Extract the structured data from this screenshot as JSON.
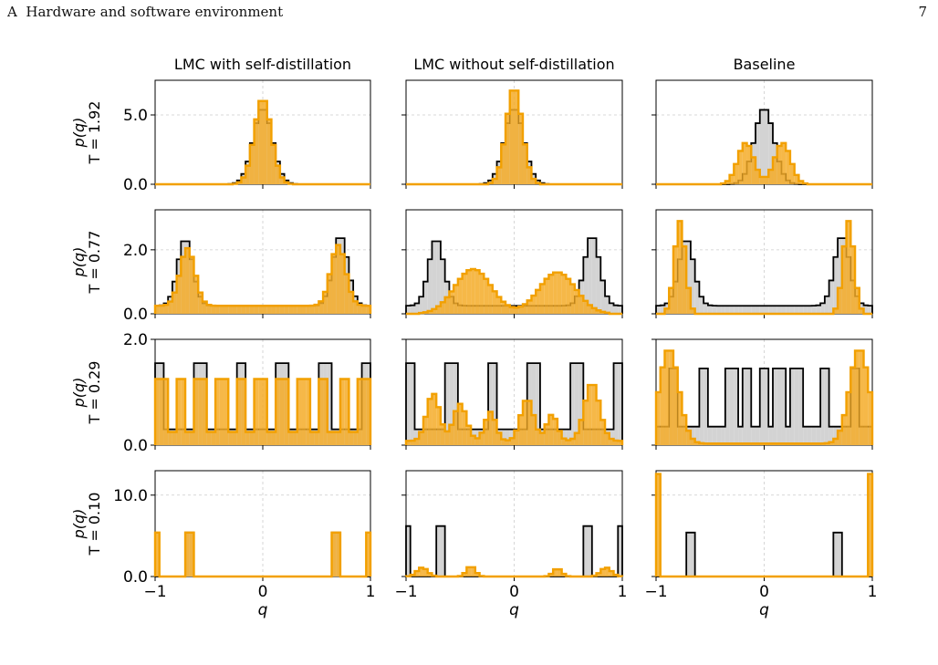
{
  "header": {
    "section": "A",
    "title": "Hardware and software environment",
    "page_number": "7"
  },
  "colors": {
    "reference_fill": "#d3d3d3",
    "reference_edge": "#000000",
    "model_fill": "#f5ac28",
    "model_edge": "#f2a000"
  },
  "chart_data": {
    "type": "histogram-grid",
    "grid": true,
    "xlabel": "q",
    "x_ticks": [
      "−1",
      "0",
      "1"
    ],
    "xlim": [
      -1,
      1
    ],
    "columns": [
      "LMC with self-distillation",
      "LMC without self-distillation",
      "Baseline"
    ],
    "rows": [
      {
        "label_top": "p(q)",
        "label_bottom": "T = 1.92",
        "ylim": [
          0,
          7.5
        ],
        "y_ticks": [
          {
            "value": 0,
            "label": "0.0"
          },
          {
            "value": 5,
            "label": "5.0"
          }
        ]
      },
      {
        "label_top": "p(q)",
        "label_bottom": "T = 0.77",
        "ylim": [
          0,
          3.25
        ],
        "y_ticks": [
          {
            "value": 0,
            "label": "0.0"
          },
          {
            "value": 2,
            "label": "2.0"
          }
        ]
      },
      {
        "label_top": "p(q)",
        "label_bottom": "T = 0.29",
        "ylim": [
          0,
          2.0
        ],
        "y_ticks": [
          {
            "value": 0,
            "label": "0.0"
          },
          {
            "value": 2,
            "label": "2.0"
          }
        ]
      },
      {
        "label_top": "p(q)",
        "label_bottom": "T = 0.10",
        "ylim": [
          0,
          13.0
        ],
        "y_ticks": [
          {
            "value": 0,
            "label": "0.0"
          },
          {
            "value": 10,
            "label": "10.0"
          }
        ]
      }
    ],
    "histograms": {
      "row0": {
        "reference": {
          "type": "gauss",
          "peaks": [
            [
              0,
              5.5,
              0.09
            ]
          ]
        },
        "col0": {
          "type": "gauss",
          "peaks": [
            [
              0,
              6.2,
              0.08
            ]
          ]
        },
        "col1": {
          "type": "gauss",
          "peaks": [
            [
              0,
              7.0,
              0.075
            ]
          ]
        },
        "col2": {
          "type": "gauss",
          "peaks": [
            [
              -0.17,
              3.0,
              0.075
            ],
            [
              0.17,
              3.0,
              0.075
            ]
          ]
        }
      },
      "row1": {
        "reference": {
          "type": "gauss",
          "base": 0.25,
          "peaks": [
            [
              -0.72,
              2.1,
              0.07
            ],
            [
              0.72,
              2.2,
              0.07
            ]
          ]
        },
        "col0": {
          "type": "gauss",
          "base": 0.25,
          "peaks": [
            [
              -0.7,
              1.8,
              0.07
            ],
            [
              0.7,
              1.9,
              0.07
            ]
          ]
        },
        "col1": {
          "type": "gauss",
          "peaks": [
            [
              -0.38,
              1.4,
              0.17
            ],
            [
              0.4,
              1.3,
              0.17
            ]
          ]
        },
        "col2": {
          "type": "gauss",
          "peaks": [
            [
              -0.78,
              2.9,
              0.05
            ],
            [
              0.78,
              2.9,
              0.05
            ]
          ]
        }
      },
      "row2": {
        "reference": {
          "type": "spikes",
          "height": 1.55,
          "base": 0.3,
          "width": 0.06,
          "positions": [
            -0.97,
            -0.58,
            -0.2,
            0.2,
            0.58,
            0.97
          ]
        },
        "col0": {
          "type": "spikes",
          "height": 1.25,
          "base": 0.25,
          "width": 0.06,
          "positions": [
            -0.95,
            -0.76,
            -0.56,
            -0.38,
            -0.2,
            0.0,
            0.2,
            0.38,
            0.56,
            0.76,
            0.95
          ]
        },
        "col1": {
          "type": "gauss",
          "base": 0.08,
          "peaks": [
            [
              -0.75,
              0.9,
              0.06
            ],
            [
              -0.5,
              0.7,
              0.06
            ],
            [
              -0.22,
              0.55,
              0.05
            ],
            [
              0.12,
              0.8,
              0.06
            ],
            [
              0.35,
              0.5,
              0.05
            ],
            [
              0.72,
              1.1,
              0.07
            ]
          ]
        },
        "col2": {
          "type": "gauss",
          "base": 0.03,
          "peaks": [
            [
              -0.88,
              1.8,
              0.09
            ],
            [
              0.88,
              1.8,
              0.09
            ]
          ]
        },
        "col2_reference": {
          "type": "spikes",
          "height": 1.45,
          "base": 0.35,
          "width": 0.05,
          "positions": [
            -0.85,
            -0.55,
            -0.3,
            -0.15,
            0.0,
            0.15,
            0.3,
            0.55,
            0.85
          ]
        }
      },
      "row3": {
        "reference": {
          "type": "spikes",
          "height": 5.4,
          "base": 0,
          "width": 0.035,
          "positions": [
            -0.67,
            0.67
          ]
        },
        "col0": {
          "type": "spikes",
          "height": 5.4,
          "base": 0,
          "width": 0.035,
          "positions": [
            -0.985,
            -0.67,
            0.67,
            0.985
          ]
        },
        "col1": {
          "type": "gauss",
          "peaks": [
            [
              -0.85,
              1.1,
              0.05
            ],
            [
              -0.4,
              1.3,
              0.04
            ],
            [
              0.4,
              1.0,
              0.04
            ],
            [
              0.85,
              1.1,
              0.05
            ]
          ]
        },
        "col1_reference": {
          "type": "spikes",
          "height": 6.2,
          "base": 0,
          "width": 0.035,
          "positions": [
            -0.985,
            -0.67,
            0.67,
            0.985
          ]
        },
        "col2": {
          "type": "spikes",
          "height": 12.6,
          "base": 0,
          "width": 0.02,
          "positions": [
            -0.99,
            0.99
          ]
        },
        "col2_reference": {
          "type": "spikes",
          "height": 5.4,
          "base": 0,
          "width": 0.035,
          "positions": [
            -0.67,
            0.67
          ]
        }
      }
    }
  }
}
